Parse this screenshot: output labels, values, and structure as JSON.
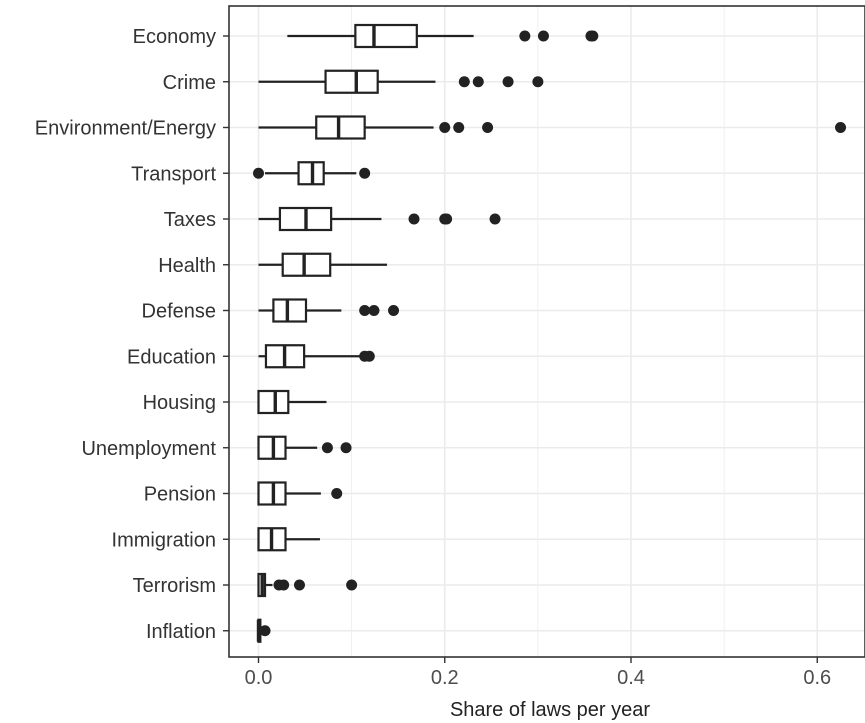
{
  "chart_data": {
    "type": "boxplot",
    "orientation": "horizontal",
    "title": "",
    "xlabel": "Share of laws per year",
    "ylabel": "",
    "xlim": [
      -0.016,
      0.65
    ],
    "xticks": [
      0.0,
      0.2,
      0.4,
      0.6
    ],
    "xtick_labels": [
      "0.0",
      "0.2",
      "0.4",
      "0.6"
    ],
    "grid": true,
    "categories": [
      "Economy",
      "Crime",
      "Environment/Energy",
      "Transport",
      "Taxes",
      "Health",
      "Defense",
      "Education",
      "Housing",
      "Unemployment",
      "Pension",
      "Immigration",
      "Terrorism",
      "Inflation"
    ],
    "boxes": [
      {
        "category": "Economy",
        "whisker_low": 0.031,
        "q1": 0.104,
        "median": 0.124,
        "q3": 0.17,
        "whisker_high": 0.231,
        "outliers": [
          0.286,
          0.306,
          0.357,
          0.359
        ]
      },
      {
        "category": "Crime",
        "whisker_low": 0.0,
        "q1": 0.072,
        "median": 0.105,
        "q3": 0.128,
        "whisker_high": 0.19,
        "outliers": [
          0.221,
          0.236,
          0.268,
          0.3
        ]
      },
      {
        "category": "Environment/Energy",
        "whisker_low": 0.0,
        "q1": 0.062,
        "median": 0.086,
        "q3": 0.114,
        "whisker_high": 0.188,
        "outliers": [
          0.2,
          0.215,
          0.246,
          0.625
        ]
      },
      {
        "category": "Transport",
        "whisker_low": 0.007,
        "q1": 0.043,
        "median": 0.058,
        "q3": 0.07,
        "whisker_high": 0.105,
        "outliers": [
          0.0,
          0.114
        ]
      },
      {
        "category": "Taxes",
        "whisker_low": 0.0,
        "q1": 0.023,
        "median": 0.051,
        "q3": 0.078,
        "whisker_high": 0.132,
        "outliers": [
          0.167,
          0.2,
          0.202,
          0.254
        ]
      },
      {
        "category": "Health",
        "whisker_low": 0.0,
        "q1": 0.026,
        "median": 0.049,
        "q3": 0.077,
        "whisker_high": 0.138,
        "outliers": []
      },
      {
        "category": "Defense",
        "whisker_low": 0.0,
        "q1": 0.016,
        "median": 0.031,
        "q3": 0.051,
        "whisker_high": 0.089,
        "outliers": [
          0.114,
          0.124,
          0.145
        ]
      },
      {
        "category": "Education",
        "whisker_low": 0.0,
        "q1": 0.008,
        "median": 0.028,
        "q3": 0.049,
        "whisker_high": 0.11,
        "outliers": [
          0.114,
          0.119
        ]
      },
      {
        "category": "Housing",
        "whisker_low": 0.0,
        "q1": 0.0,
        "median": 0.018,
        "q3": 0.032,
        "whisker_high": 0.073,
        "outliers": []
      },
      {
        "category": "Unemployment",
        "whisker_low": 0.0,
        "q1": 0.0,
        "median": 0.016,
        "q3": 0.029,
        "whisker_high": 0.063,
        "outliers": [
          0.074,
          0.094
        ]
      },
      {
        "category": "Pension",
        "whisker_low": 0.0,
        "q1": 0.0,
        "median": 0.016,
        "q3": 0.029,
        "whisker_high": 0.067,
        "outliers": [
          0.084
        ]
      },
      {
        "category": "Immigration",
        "whisker_low": 0.0,
        "q1": 0.0,
        "median": 0.014,
        "q3": 0.029,
        "whisker_high": 0.066,
        "outliers": []
      },
      {
        "category": "Terrorism",
        "whisker_low": 0.0,
        "q1": 0.0,
        "median": 0.004,
        "q3": 0.007,
        "whisker_high": 0.015,
        "outliers": [
          0.022,
          0.027,
          0.044,
          0.1
        ]
      },
      {
        "category": "Inflation",
        "whisker_low": 0.0,
        "q1": 0.0,
        "median": 0.0,
        "q3": 0.002,
        "whisker_high": 0.004,
        "outliers": [
          0.007
        ]
      }
    ],
    "colors": {
      "box_stroke": "#222222",
      "box_fill": "#ffffff",
      "outlier": "#222222",
      "grid": "#ebebeb",
      "axis": "#333333"
    }
  }
}
